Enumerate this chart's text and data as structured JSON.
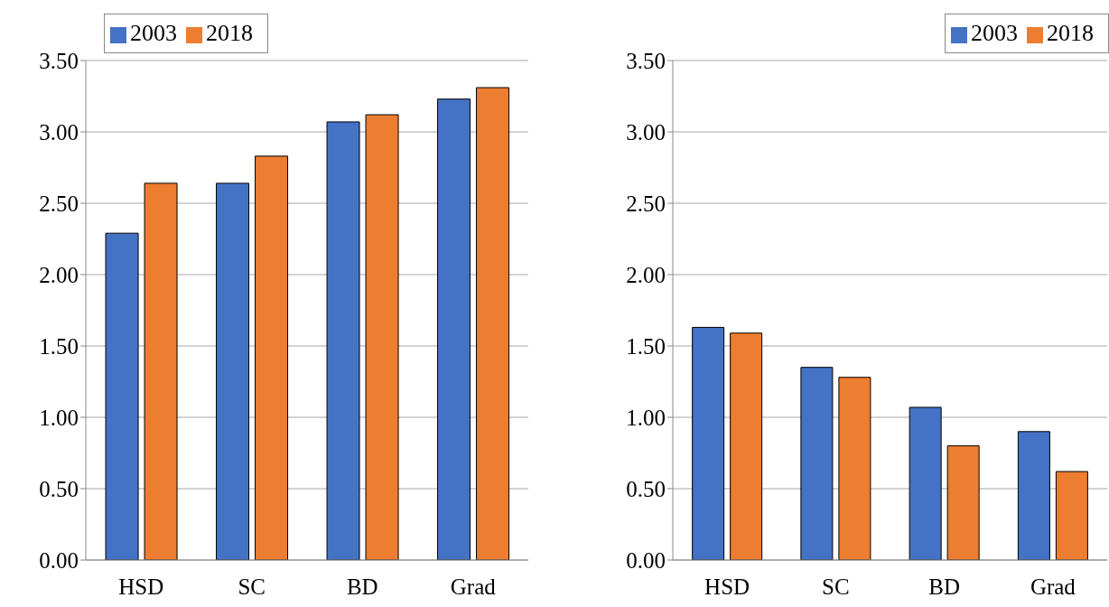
{
  "chart_data": [
    {
      "type": "bar",
      "categories": [
        "HSD",
        "SC",
        "BD",
        "Grad"
      ],
      "series": [
        {
          "name": "2003",
          "color": "#4472c4",
          "values": [
            2.29,
            2.64,
            3.07,
            3.23
          ]
        },
        {
          "name": "2018",
          "color": "#ed7d31",
          "values": [
            2.64,
            2.83,
            3.12,
            3.31
          ]
        }
      ],
      "ylim": [
        0,
        3.5
      ],
      "yticks": [
        {
          "value": 0,
          "label": "0.00"
        },
        {
          "value": 0.5,
          "label": "0.50"
        },
        {
          "value": 1,
          "label": "1.00"
        },
        {
          "value": 1.5,
          "label": "1.50"
        },
        {
          "value": 2,
          "label": "2.00"
        },
        {
          "value": 2.5,
          "label": "2.50"
        },
        {
          "value": 3,
          "label": "3.00"
        },
        {
          "value": 3.5,
          "label": "3.50"
        }
      ],
      "grid": "y",
      "legend": "top left"
    },
    {
      "type": "bar",
      "categories": [
        "HSD",
        "SC",
        "BD",
        "Grad"
      ],
      "series": [
        {
          "name": "2003",
          "color": "#4472c4",
          "values": [
            1.63,
            1.35,
            1.07,
            0.9
          ]
        },
        {
          "name": "2018",
          "color": "#ed7d31",
          "values": [
            1.59,
            1.28,
            0.8,
            0.62
          ]
        }
      ],
      "ylim": [
        0,
        3.5
      ],
      "yticks": [
        {
          "value": 0,
          "label": "0.00"
        },
        {
          "value": 0.5,
          "label": "0.50"
        },
        {
          "value": 1,
          "label": "1.00"
        },
        {
          "value": 1.5,
          "label": "1.50"
        },
        {
          "value": 2,
          "label": "2.00"
        },
        {
          "value": 2.5,
          "label": "2.50"
        },
        {
          "value": 3,
          "label": "3.00"
        },
        {
          "value": 3.5,
          "label": "3.50"
        }
      ],
      "grid": "y",
      "legend": "top right"
    }
  ]
}
